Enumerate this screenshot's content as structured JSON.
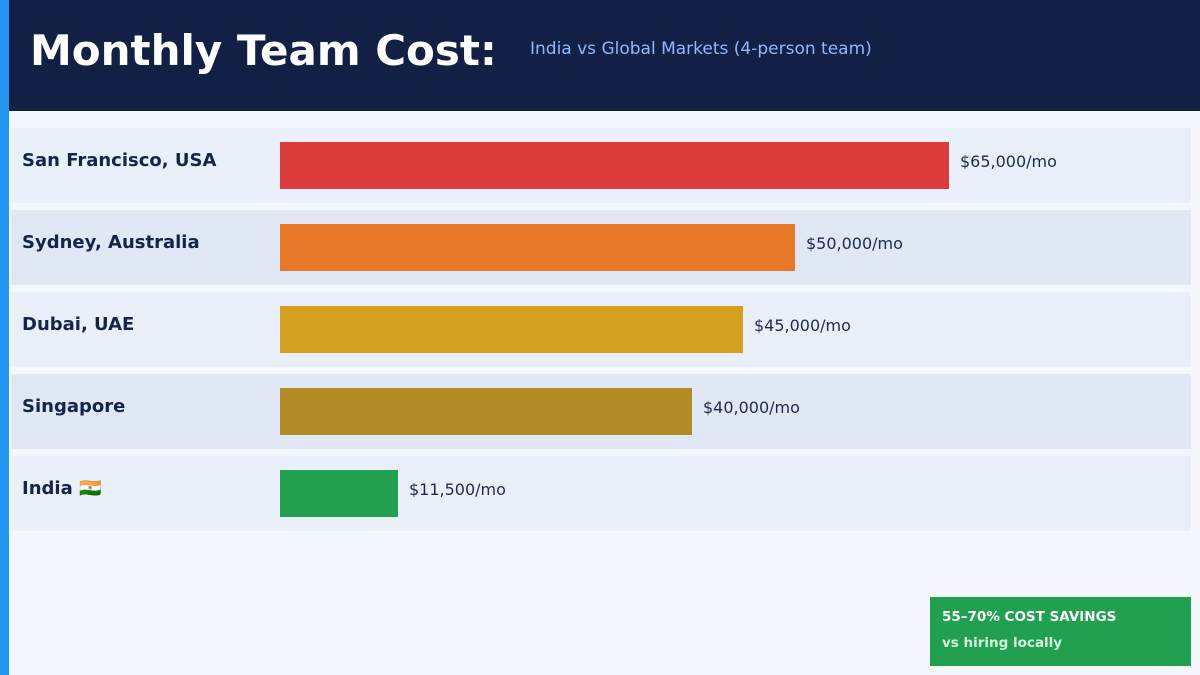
{
  "header": {
    "title": "Monthly Team Cost:",
    "subtitle": "India vs Global Markets  (4-person team)"
  },
  "chart_data": {
    "type": "bar",
    "orientation": "horizontal",
    "title": "Monthly Team Cost:",
    "subtitle": "India vs Global Markets  (4-person team)",
    "categories": [
      "San Francisco, USA",
      "Sydney, Australia",
      "Dubai, UAE",
      "Singapore",
      "India 🇮🇳"
    ],
    "values": [
      65000,
      50000,
      45000,
      40000,
      11500
    ],
    "value_labels": [
      "$65,000/mo",
      "$50,000/mo",
      "$45,000/mo",
      "$40,000/mo",
      "$11,500/mo"
    ],
    "colors": [
      "#dc3b3b",
      "#e67828",
      "#d4a020",
      "#b38c28",
      "#21a150"
    ],
    "row_backgrounds": [
      "#eaf0fa",
      "#e0e8f5",
      "#eaf0fa",
      "#e0e8f5",
      "#eaf0fa"
    ],
    "xlim": [
      0,
      65000
    ],
    "grid": false,
    "legend": "none"
  },
  "callout": {
    "line1": "55–70% COST SAVINGS",
    "line2": "vs hiring locally"
  },
  "colors": {
    "accent": "#2196f3",
    "header_bg": "#112044",
    "callout_bg": "#21a150"
  }
}
